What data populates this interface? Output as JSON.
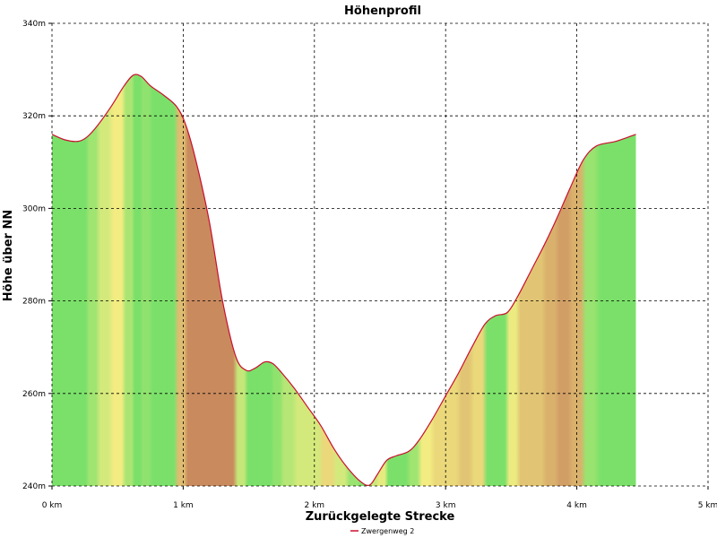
{
  "chart_data": {
    "type": "area",
    "title": "Höhenprofil",
    "xlabel": "Zurückgelegte Strecke",
    "ylabel": "Höhe über NN",
    "xlim": [
      0,
      5
    ],
    "ylim": [
      240,
      340
    ],
    "x_ticks": [
      {
        "value": 0,
        "label": "0 km"
      },
      {
        "value": 1,
        "label": "1 km"
      },
      {
        "value": 2,
        "label": "2 km"
      },
      {
        "value": 3,
        "label": "3 km"
      },
      {
        "value": 4,
        "label": "4 km"
      },
      {
        "value": 5,
        "label": "5 km"
      }
    ],
    "y_ticks": [
      {
        "value": 240,
        "label": "240m"
      },
      {
        "value": 260,
        "label": "260m"
      },
      {
        "value": 280,
        "label": "280m"
      },
      {
        "value": 300,
        "label": "300m"
      },
      {
        "value": 320,
        "label": "320m"
      },
      {
        "value": 340,
        "label": "340m"
      }
    ],
    "grid": true,
    "legend_position": "bottom-center",
    "series": [
      {
        "name": "Zwergenweg 2",
        "line_color": "#c8102e",
        "x": [
          0,
          0.1,
          0.2,
          0.27,
          0.35,
          0.45,
          0.55,
          0.62,
          0.68,
          0.75,
          0.85,
          0.95,
          1.02,
          1.1,
          1.2,
          1.3,
          1.4,
          1.48,
          1.55,
          1.62,
          1.68,
          1.75,
          1.85,
          1.95,
          2.05,
          2.15,
          2.25,
          2.35,
          2.42,
          2.48,
          2.55,
          2.62,
          2.72,
          2.8,
          2.9,
          3.0,
          3.1,
          3.2,
          3.3,
          3.38,
          3.47,
          3.55,
          3.65,
          3.75,
          3.85,
          3.95,
          4.05,
          4.15,
          4.3,
          4.45
        ],
        "y": [
          316,
          314.8,
          314.5,
          315.5,
          318,
          322,
          326.5,
          328.8,
          328.5,
          326.5,
          324.5,
          322,
          318,
          310,
          297,
          280,
          268,
          265,
          265.5,
          266.8,
          266.5,
          264.5,
          261,
          257,
          253,
          248,
          244,
          241,
          240.2,
          242.5,
          245.5,
          246.5,
          247.5,
          250,
          254.5,
          259.5,
          264.5,
          270,
          275,
          276.8,
          277.5,
          281,
          286.5,
          292,
          298,
          304.5,
          310.5,
          313.5,
          314.5,
          316
        ]
      }
    ],
    "fill_gradient_colors": {
      "flat": "#7be06a",
      "moderate": "#f2ec82",
      "steep": "#c98a5e"
    }
  }
}
